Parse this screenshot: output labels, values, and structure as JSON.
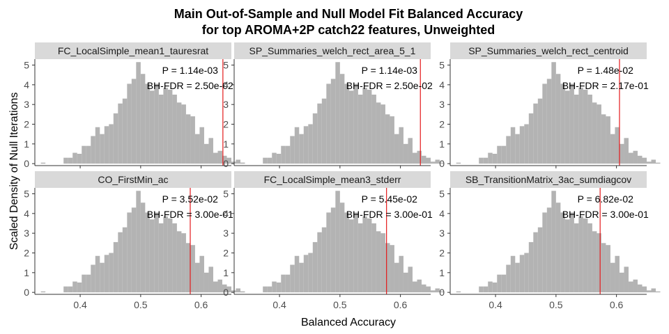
{
  "title_line1": "Main Out-of-Sample and Null Model Fit Balanced Accuracy",
  "title_line2": "for top AROMA+2P catch22 features, Unweighted",
  "xlabel": "Balanced Accuracy",
  "ylabel": "Scaled Density of Null Iterations",
  "colors": {
    "bar": "#b3b3b3",
    "strip": "#d9d9d9",
    "vline": "#e41a1c",
    "axis": "#333333"
  },
  "chart_data": {
    "type": "histogram",
    "facet_layout": "2 rows x 3 columns",
    "grid": false,
    "xlim": [
      0.325,
      0.65
    ],
    "ylim": [
      -0.1,
      5.3
    ],
    "x_ticks": [
      0.4,
      0.5,
      0.6
    ],
    "x_tick_labels": [
      "0.4",
      "0.5",
      "0.6"
    ],
    "y_ticks": [
      0,
      1,
      2,
      3,
      4,
      5
    ],
    "y_tick_labels": [
      "0",
      "1",
      "2",
      "3",
      "4",
      "5"
    ],
    "bins_start": 0.335,
    "bins_width": 0.0075,
    "panels": [
      {
        "strip": "FC_LocalSimple_mean1_tauresrat",
        "p_text": "P = 1.14e-03",
        "fdr_text": "BH-FDR = 2.50e-02",
        "main_value": 0.636,
        "densities": [
          0.05,
          0,
          0,
          0,
          0,
          0.3,
          0.3,
          0.55,
          0.5,
          0.9,
          0.9,
          1.4,
          1.85,
          1.5,
          1.9,
          2.0,
          2.55,
          3.05,
          3.3,
          4.05,
          4.3,
          5.15,
          4.55,
          4.05,
          3.7,
          4.05,
          3.5,
          3.85,
          3.75,
          3.5,
          3.1,
          3.0,
          2.5,
          2.4,
          1.5,
          1.85,
          1.0,
          1.3,
          0.55,
          0.65,
          0.4,
          0.3,
          0.1,
          0.2,
          0.05
        ]
      },
      {
        "strip": "SP_Summaries_welch_rect_area_5_1",
        "p_text": "P = 1.14e-03",
        "fdr_text": "BH-FDR = 2.50e-02",
        "main_value": 0.633,
        "densities": [
          0.05,
          0,
          0,
          0,
          0,
          0.3,
          0.3,
          0.55,
          0.5,
          0.9,
          0.9,
          1.4,
          1.85,
          1.5,
          1.9,
          2.0,
          2.55,
          3.05,
          3.3,
          4.05,
          4.3,
          5.15,
          4.55,
          4.05,
          3.7,
          4.05,
          3.5,
          3.85,
          3.75,
          3.5,
          3.1,
          3.0,
          2.5,
          2.4,
          1.5,
          1.85,
          1.0,
          1.3,
          0.55,
          0.65,
          0.4,
          0.3,
          0.1,
          0.2,
          0.05
        ]
      },
      {
        "strip": "SP_Summaries_welch_rect_centroid",
        "p_text": "P = 1.48e-02",
        "fdr_text": "BH-FDR = 2.17e-01",
        "main_value": 0.605,
        "densities": [
          0.05,
          0,
          0,
          0,
          0,
          0.3,
          0.3,
          0.55,
          0.5,
          0.9,
          0.9,
          1.4,
          1.85,
          1.5,
          1.9,
          2.0,
          2.55,
          3.05,
          3.3,
          4.05,
          4.3,
          5.15,
          4.55,
          4.05,
          3.7,
          4.05,
          3.5,
          3.85,
          3.75,
          3.5,
          3.1,
          3.0,
          2.5,
          2.4,
          1.5,
          1.85,
          1.0,
          1.3,
          0.55,
          0.65,
          0.4,
          0.3,
          0.1,
          0.2,
          0.05
        ]
      },
      {
        "strip": "CO_FirstMin_ac",
        "p_text": "P = 3.52e-02",
        "fdr_text": "BH-FDR = 3.00e-01",
        "main_value": 0.582,
        "densities": [
          0.05,
          0,
          0,
          0,
          0,
          0.3,
          0.3,
          0.55,
          0.5,
          0.9,
          0.9,
          1.4,
          1.85,
          1.5,
          1.9,
          2.0,
          2.55,
          3.05,
          3.3,
          4.05,
          4.3,
          5.15,
          4.55,
          4.05,
          3.7,
          4.05,
          3.5,
          3.85,
          3.75,
          3.5,
          3.1,
          3.0,
          2.5,
          2.4,
          1.5,
          1.85,
          1.0,
          1.3,
          0.55,
          0.65,
          0.4,
          0.3,
          0.1,
          0.2,
          0.05
        ]
      },
      {
        "strip": "FC_LocalSimple_mean3_stderr",
        "p_text": "P = 5.45e-02",
        "fdr_text": "BH-FDR = 3.00e-01",
        "main_value": 0.577,
        "densities": [
          0.05,
          0,
          0,
          0,
          0,
          0.3,
          0.3,
          0.55,
          0.5,
          0.9,
          0.9,
          1.4,
          1.85,
          1.5,
          1.9,
          2.0,
          2.55,
          3.05,
          3.3,
          4.05,
          4.3,
          5.15,
          4.55,
          4.05,
          3.7,
          4.05,
          3.5,
          3.85,
          3.75,
          3.5,
          3.1,
          3.0,
          2.5,
          2.4,
          1.5,
          1.85,
          1.0,
          1.3,
          0.55,
          0.65,
          0.4,
          0.3,
          0.1,
          0.2,
          0.05
        ]
      },
      {
        "strip": "SB_TransitionMatrix_3ac_sumdiagcov",
        "p_text": "P = 6.82e-02",
        "fdr_text": "BH-FDR = 3.00e-01",
        "main_value": 0.573,
        "densities": [
          0.05,
          0,
          0,
          0,
          0,
          0.3,
          0.3,
          0.55,
          0.5,
          0.9,
          0.9,
          1.4,
          1.85,
          1.5,
          1.9,
          2.0,
          2.55,
          3.05,
          3.3,
          4.05,
          4.3,
          5.15,
          4.55,
          4.05,
          3.7,
          4.05,
          3.5,
          3.85,
          3.75,
          3.5,
          3.1,
          3.0,
          2.5,
          2.4,
          1.5,
          1.85,
          1.0,
          1.3,
          0.55,
          0.65,
          0.4,
          0.3,
          0.1,
          0.2,
          0.05
        ]
      }
    ]
  }
}
